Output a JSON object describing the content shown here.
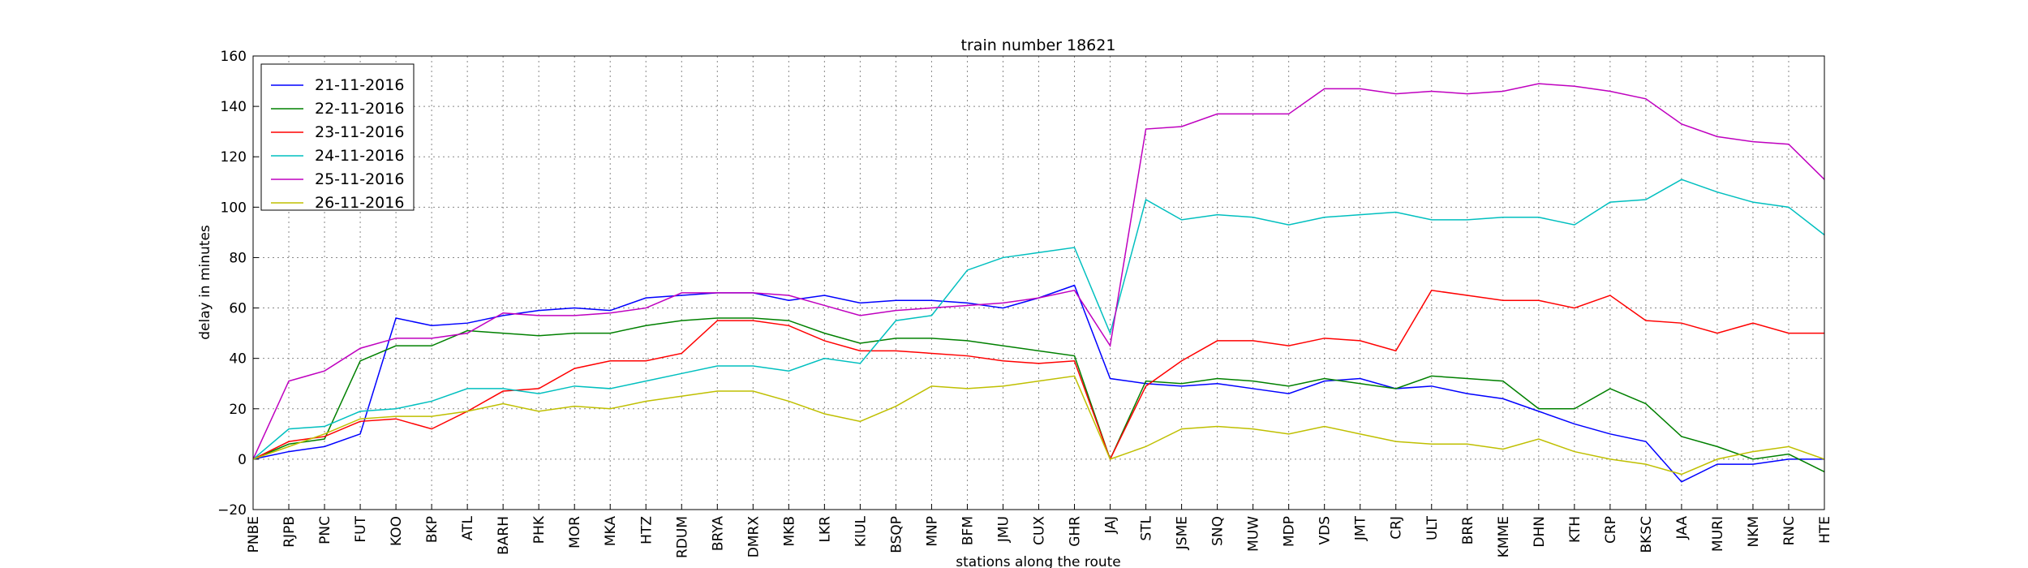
{
  "chart_data": {
    "type": "line",
    "title": "train number 18621",
    "x_label": "stations along the route",
    "y_label": "delay in minutes",
    "categories": [
      "PNBE",
      "RJPB",
      "PNC",
      "FUT",
      "KOO",
      "BKP",
      "ATL",
      "BARH",
      "PHK",
      "MOR",
      "MKA",
      "HTZ",
      "RDUM",
      "BRYA",
      "DMRX",
      "MKB",
      "LKR",
      "KIUL",
      "BSQP",
      "MNP",
      "BFM",
      "JMU",
      "CUX",
      "GHR",
      "JAJ",
      "STL",
      "JSME",
      "SNQ",
      "MUW",
      "MDP",
      "VDS",
      "JMT",
      "CRJ",
      "ULT",
      "BRR",
      "KMME",
      "DHN",
      "KTH",
      "CRP",
      "BKSC",
      "JAA",
      "MURI",
      "NKM",
      "RNC",
      "HTE"
    ],
    "series": [
      {
        "name": "21-11-2016",
        "color": "#0000ff",
        "values": [
          0,
          3,
          5,
          10,
          56,
          53,
          54,
          57,
          59,
          60,
          59,
          64,
          65,
          66,
          66,
          63,
          65,
          62,
          63,
          63,
          62,
          60,
          64,
          69,
          32,
          30,
          29,
          30,
          28,
          26,
          31,
          32,
          28,
          29,
          26,
          24,
          19,
          14,
          10,
          7,
          -9,
          -2,
          -2,
          0,
          0
        ]
      },
      {
        "name": "22-11-2016",
        "color": "#008000",
        "values": [
          0,
          6,
          8,
          39,
          45,
          45,
          51,
          50,
          49,
          50,
          50,
          53,
          55,
          56,
          56,
          55,
          50,
          46,
          48,
          48,
          47,
          45,
          43,
          41,
          0,
          31,
          30,
          32,
          31,
          29,
          32,
          30,
          28,
          33,
          32,
          31,
          20,
          20,
          28,
          22,
          9,
          5,
          0,
          2,
          -5
        ]
      },
      {
        "name": "23-11-2016",
        "color": "#ff0000",
        "values": [
          0,
          7,
          9,
          15,
          16,
          12,
          19,
          27,
          28,
          36,
          39,
          39,
          42,
          55,
          55,
          53,
          47,
          43,
          43,
          42,
          41,
          39,
          38,
          39,
          0,
          29,
          39,
          47,
          47,
          45,
          48,
          47,
          43,
          67,
          65,
          63,
          63,
          60,
          65,
          55,
          54,
          50,
          54,
          50,
          50
        ]
      },
      {
        "name": "24-11-2016",
        "color": "#00bfbf",
        "values": [
          0,
          12,
          13,
          19,
          20,
          23,
          28,
          28,
          26,
          29,
          28,
          31,
          34,
          37,
          37,
          35,
          40,
          38,
          55,
          57,
          75,
          80,
          82,
          84,
          50,
          103,
          95,
          97,
          96,
          93,
          96,
          97,
          98,
          95,
          95,
          96,
          96,
          93,
          102,
          103,
          111,
          106,
          102,
          100,
          89
        ]
      },
      {
        "name": "25-11-2016",
        "color": "#bf00bf",
        "values": [
          0,
          31,
          35,
          44,
          48,
          48,
          50,
          58,
          57,
          57,
          58,
          60,
          66,
          66,
          66,
          65,
          61,
          57,
          59,
          60,
          61,
          62,
          64,
          67,
          45,
          131,
          132,
          137,
          137,
          137,
          147,
          147,
          145,
          146,
          145,
          146,
          149,
          148,
          146,
          143,
          133,
          128,
          126,
          125,
          111
        ]
      },
      {
        "name": "26-11-2016",
        "color": "#bfbf00",
        "values": [
          0,
          5,
          10,
          16,
          17,
          17,
          19,
          22,
          19,
          21,
          20,
          23,
          25,
          27,
          27,
          23,
          18,
          15,
          21,
          29,
          28,
          29,
          31,
          33,
          0,
          5,
          12,
          13,
          12,
          10,
          13,
          10,
          7,
          6,
          6,
          4,
          8,
          3,
          0,
          -2,
          -6,
          0,
          3,
          5,
          0
        ]
      }
    ],
    "ylim": [
      -20,
      160
    ],
    "yticks": [
      {
        "value": -20,
        "label": "−20"
      },
      0,
      20,
      40,
      60,
      80,
      100,
      120,
      140,
      160
    ],
    "grid": true,
    "legend": "upper left"
  }
}
